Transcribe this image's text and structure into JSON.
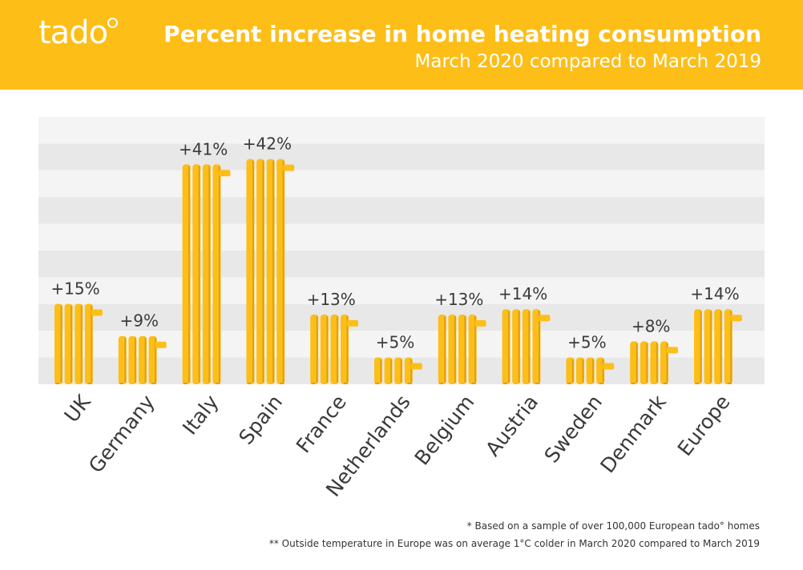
{
  "brand": {
    "logo_text": "tado"
  },
  "header": {
    "title": "Percent increase in home heating consumption",
    "subtitle": "March 2020 compared to March 2019"
  },
  "footnotes": {
    "note1": "* Based on a sample of over 100,000 European tado° homes",
    "note2": "** Outside temperature in Europe was on average 1°C colder in March 2020 compared to March 2019"
  },
  "colors": {
    "header_bg": "#fdbe18",
    "bar": "#fdbe18",
    "bar_dark": "#e0a010",
    "stripe_light": "#f4f4f4",
    "stripe_dark": "#e8e8e8"
  },
  "chart_data": {
    "type": "bar",
    "title": "Percent increase in home heating consumption",
    "subtitle": "March 2020 compared to March 2019",
    "categories": [
      "UK",
      "Germany",
      "Italy",
      "Spain",
      "France",
      "Netherlands",
      "Belgium",
      "Austria",
      "Sweden",
      "Denmark",
      "Europe"
    ],
    "values": [
      15,
      9,
      41,
      42,
      13,
      5,
      13,
      14,
      5,
      8,
      14
    ],
    "value_labels": [
      "+15%",
      "+9%",
      "+41%",
      "+42%",
      "+13%",
      "+5%",
      "+13%",
      "+14%",
      "+5%",
      "+8%",
      "+14%"
    ],
    "unit": "%",
    "ylim": [
      0,
      50
    ],
    "grid": "striped background bands",
    "legend": "none"
  }
}
